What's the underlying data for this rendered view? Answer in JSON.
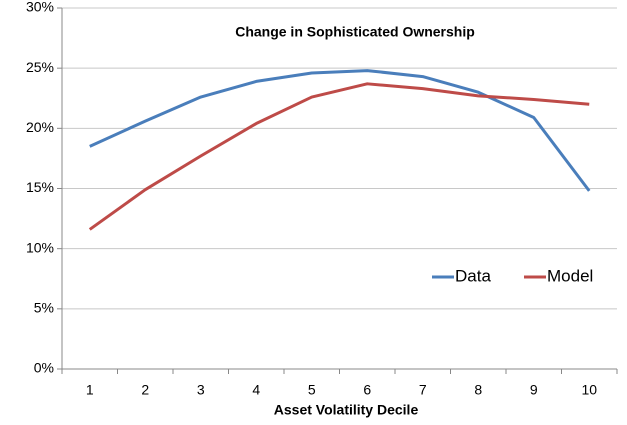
{
  "chart_data": {
    "type": "line",
    "title": "Change in Sophisticated Ownership",
    "x_label": "Asset Volatility Decile",
    "categories": [
      1,
      2,
      3,
      4,
      5,
      6,
      7,
      8,
      9,
      10
    ],
    "series": [
      {
        "name": "Data",
        "color": "#4a7ebb",
        "values": [
          18.5,
          20.6,
          22.6,
          23.9,
          24.6,
          24.8,
          24.3,
          23.0,
          20.9,
          14.8
        ]
      },
      {
        "name": "Model",
        "color": "#be4b48",
        "values": [
          11.6,
          14.9,
          17.7,
          20.4,
          22.6,
          23.7,
          23.3,
          22.7,
          22.4,
          22.0
        ]
      }
    ],
    "ylim": [
      0,
      30
    ],
    "yticks": [
      {
        "value": 0,
        "label": "0%"
      },
      {
        "value": 5,
        "label": "5%"
      },
      {
        "value": 10,
        "label": "10%"
      },
      {
        "value": 15,
        "label": "15%"
      },
      {
        "value": 20,
        "label": "20%"
      },
      {
        "value": 25,
        "label": "25%"
      },
      {
        "value": 30,
        "label": "30%"
      }
    ],
    "grid": true,
    "legend": "right"
  }
}
